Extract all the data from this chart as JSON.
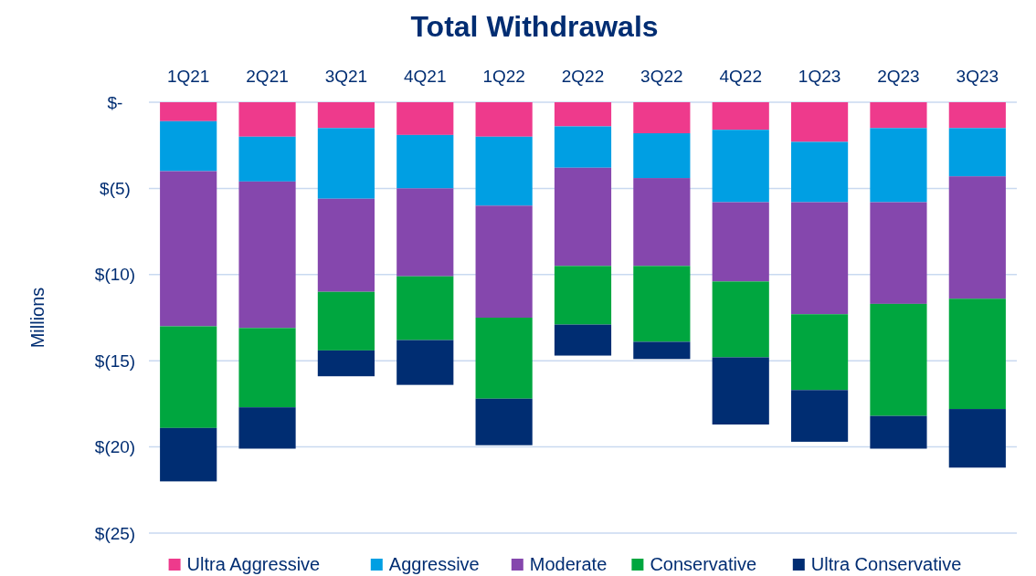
{
  "chart_data": {
    "type": "bar",
    "title": "Total Withdrawals",
    "ylabel": "Millions",
    "stacked": true,
    "categories": [
      "1Q21",
      "2Q21",
      "3Q21",
      "4Q21",
      "1Q22",
      "2Q22",
      "3Q22",
      "4Q22",
      "1Q23",
      "2Q23",
      "3Q23"
    ],
    "series": [
      {
        "name": "Ultra Aggressive",
        "color": "#ee3a8c",
        "values": [
          -1.1,
          -2.0,
          -1.5,
          -1.9,
          -2.0,
          -1.4,
          -1.8,
          -1.6,
          -2.3,
          -1.5,
          -1.5
        ]
      },
      {
        "name": "Aggressive",
        "color": "#009fe3",
        "values": [
          -2.9,
          -2.6,
          -4.1,
          -3.1,
          -4.0,
          -2.4,
          -2.6,
          -4.2,
          -3.5,
          -4.3,
          -2.8
        ]
      },
      {
        "name": "Moderate",
        "color": "#8547ad",
        "values": [
          -9.0,
          -8.5,
          -5.4,
          -5.1,
          -6.5,
          -5.7,
          -5.1,
          -4.6,
          -6.5,
          -5.9,
          -7.1
        ]
      },
      {
        "name": "Conservative",
        "color": "#00a63f",
        "values": [
          -5.9,
          -4.6,
          -3.4,
          -3.7,
          -4.7,
          -3.4,
          -4.4,
          -4.4,
          -4.4,
          -6.5,
          -6.4
        ]
      },
      {
        "name": "Ultra Conservative",
        "color": "#002d72",
        "values": [
          -3.1,
          -2.4,
          -1.5,
          -2.6,
          -2.7,
          -1.8,
          -1.0,
          -3.9,
          -3.0,
          -1.9,
          -3.4
        ]
      }
    ],
    "ylim": [
      -25,
      0
    ],
    "yticks": [
      {
        "value": 0,
        "label": "$-"
      },
      {
        "value": -5,
        "label": "$(5)"
      },
      {
        "value": -10,
        "label": "$(10)"
      },
      {
        "value": -15,
        "label": "$(15)"
      },
      {
        "value": -20,
        "label": "$(20)"
      },
      {
        "value": -25,
        "label": "$(25)"
      }
    ],
    "grid": "y",
    "legend": "bottom"
  }
}
